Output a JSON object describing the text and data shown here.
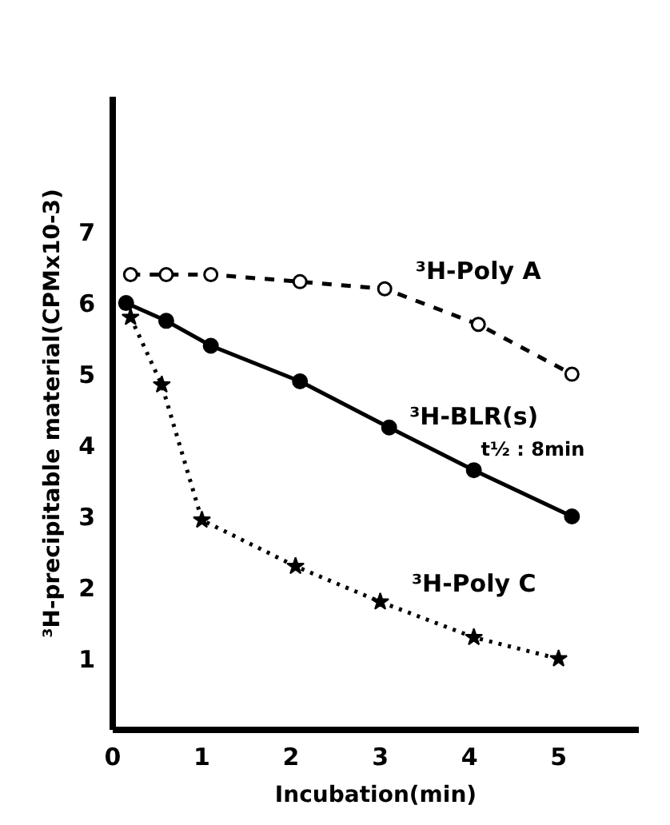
{
  "chart_data": {
    "type": "line",
    "xlabel": "Incubation(min)",
    "ylabel": "³H-precipitable material(CPMx10-3)",
    "xlim": [
      0,
      5.9
    ],
    "ylim": [
      0,
      8.9
    ],
    "xticks": [
      0,
      1,
      2,
      3,
      4,
      5
    ],
    "yticks": [
      1,
      2,
      3,
      4,
      5,
      6,
      7
    ],
    "grid": false,
    "legend": false,
    "series": [
      {
        "name": "³H-Poly A",
        "color": "#000000",
        "marker": "circle_open",
        "line_style": "dashed",
        "x": [
          0.2,
          0.6,
          1.1,
          2.1,
          3.05,
          4.1,
          5.15
        ],
        "values": [
          6.4,
          6.4,
          6.4,
          6.3,
          6.2,
          5.7,
          5.0
        ]
      },
      {
        "name": "³H-BLR(s)",
        "color": "#000000",
        "marker": "circle",
        "line_style": "solid",
        "x": [
          0.15,
          0.6,
          1.1,
          2.1,
          3.1,
          4.05,
          5.15
        ],
        "values": [
          6.0,
          5.75,
          5.4,
          4.9,
          4.25,
          3.65,
          3.0
        ]
      },
      {
        "name": "³H-Poly C",
        "color": "#000000",
        "marker": "star",
        "line_style": "dotted",
        "x": [
          0.2,
          0.55,
          1.0,
          2.05,
          3.0,
          4.05,
          5.0
        ],
        "values": [
          5.8,
          4.85,
          2.95,
          2.3,
          1.8,
          1.3,
          1.0
        ]
      }
    ],
    "annotations": [
      "t½ : 8min"
    ]
  }
}
